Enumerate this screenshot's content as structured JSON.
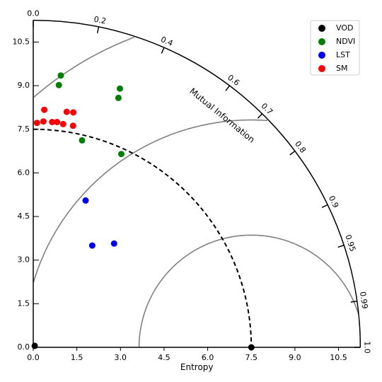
{
  "chart_data": {
    "type": "scatter",
    "subtype": "taylor-diagram",
    "xlabel": "Entropy",
    "arc_label": "Mutual Information",
    "xlim": [
      0,
      11.25
    ],
    "ylim": [
      0,
      11.25
    ],
    "x_ticks": [
      "0.0",
      "1.5",
      "3.0",
      "4.5",
      "6.0",
      "7.5",
      "9.0",
      "10.5"
    ],
    "y_ticks": [
      "0.0",
      "1.5",
      "3.0",
      "4.5",
      "6.0",
      "7.5",
      "9.0",
      "10.5"
    ],
    "correlation_ticks": [
      {
        "value": 0.0,
        "label": "0.0"
      },
      {
        "value": 0.2,
        "label": "0.2"
      },
      {
        "value": 0.4,
        "label": "0.4"
      },
      {
        "value": 0.6,
        "label": "0.6"
      },
      {
        "value": 0.7,
        "label": "0.7"
      },
      {
        "value": 0.8,
        "label": "0.8"
      },
      {
        "value": 0.9,
        "label": "0.9"
      },
      {
        "value": 0.95,
        "label": "0.95"
      },
      {
        "value": 0.99,
        "label": "0.99"
      },
      {
        "value": 1.0,
        "label": "1.0"
      }
    ],
    "reference_radius": 7.5,
    "rms_contours": [
      3.86,
      7.82,
      11.4
    ],
    "legend": {
      "placement": "top-right"
    },
    "series": [
      {
        "name": "VOD",
        "color": "#000000",
        "points": [
          [
            7.5,
            0.0
          ],
          [
            0.05,
            0.05
          ]
        ]
      },
      {
        "name": "NDVI",
        "color": "#008000",
        "points": [
          [
            0.95,
            9.35
          ],
          [
            0.88,
            9.02
          ],
          [
            2.98,
            8.9
          ],
          [
            2.93,
            8.58
          ],
          [
            1.68,
            7.12
          ],
          [
            3.03,
            6.65
          ]
        ]
      },
      {
        "name": "LST",
        "color": "#0000ff",
        "points": [
          [
            1.8,
            5.05
          ],
          [
            2.03,
            3.5
          ],
          [
            2.78,
            3.57
          ]
        ]
      },
      {
        "name": "SM",
        "color": "#ff0000",
        "points": [
          [
            0.13,
            7.72
          ],
          [
            0.35,
            7.77
          ],
          [
            0.38,
            8.17
          ],
          [
            0.65,
            7.75
          ],
          [
            0.82,
            7.75
          ],
          [
            1.03,
            7.68
          ],
          [
            1.15,
            8.1
          ],
          [
            1.38,
            8.08
          ],
          [
            1.37,
            7.62
          ]
        ]
      }
    ]
  }
}
